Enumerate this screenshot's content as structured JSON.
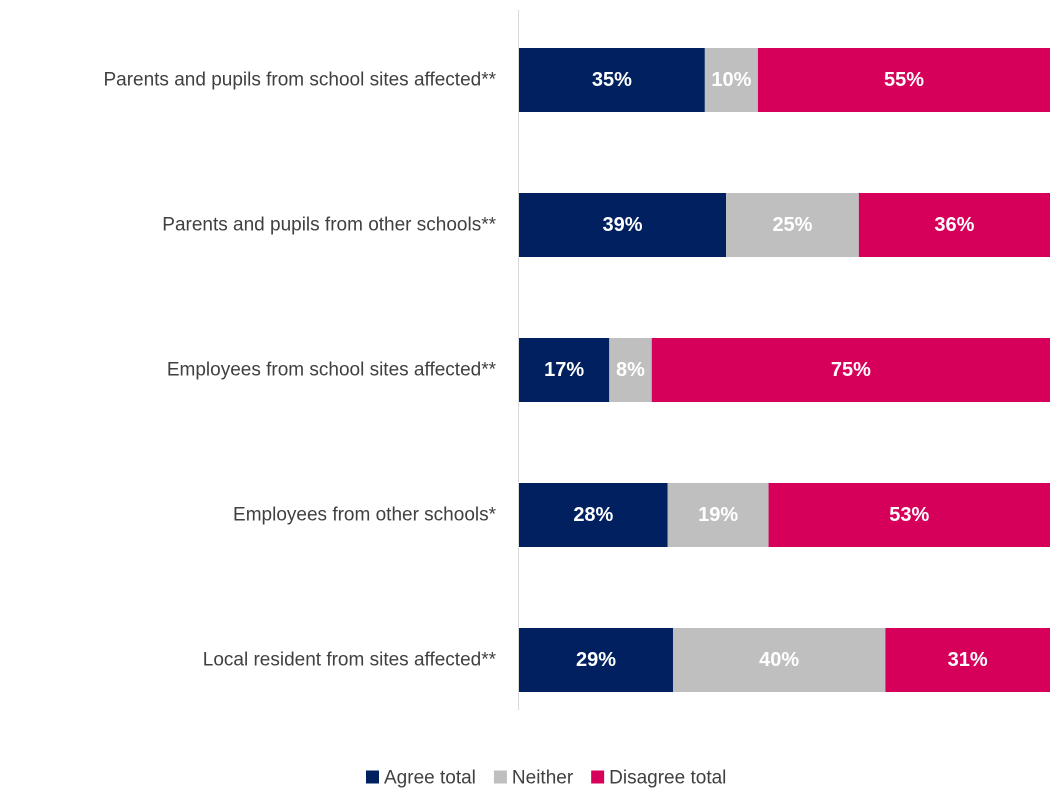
{
  "chart_data": {
    "type": "bar",
    "orientation": "horizontal",
    "stacked": true,
    "categories": [
      "Parents and pupils from school sites affected**",
      "Parents and pupils from other schools**",
      "Employees from school sites affected**",
      "Employees from other schools*",
      "Local resident from sites affected**"
    ],
    "series": [
      {
        "name": "Agree total",
        "color": "#002060",
        "values": [
          35,
          39,
          17,
          28,
          29
        ]
      },
      {
        "name": "Neither",
        "color": "#bfbfbf",
        "values": [
          10,
          25,
          8,
          19,
          40
        ]
      },
      {
        "name": "Disagree total",
        "color": "#d6005a",
        "values": [
          55,
          36,
          75,
          53,
          31
        ]
      }
    ],
    "value_suffix": "%",
    "xlim": [
      0,
      100
    ],
    "grid": false,
    "legend_position": "bottom"
  }
}
